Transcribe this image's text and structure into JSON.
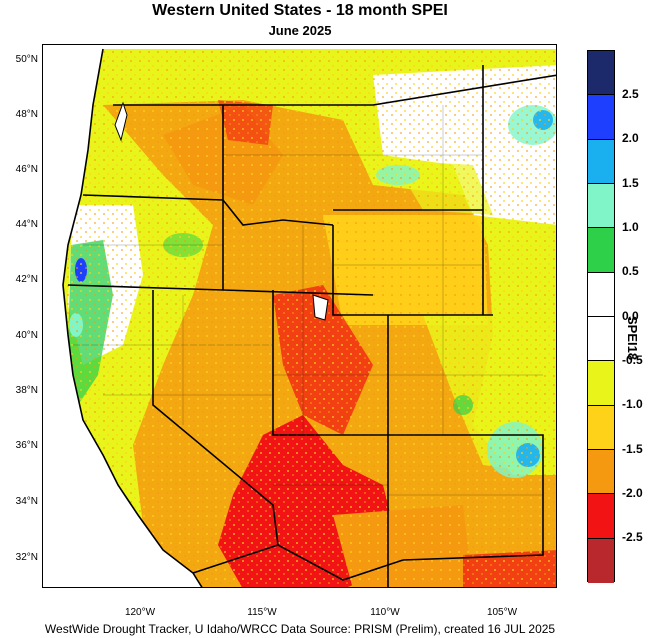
{
  "title": "Western United States - 18 month SPEI",
  "subtitle": "June 2025",
  "footer": "WestWide Drought Tracker, U Idaho/WRCC Data Source: PRISM (Prelim), created 16 JUL 2025",
  "lat_labels": [
    "50°N",
    "48°N",
    "46°N",
    "44°N",
    "42°N",
    "40°N",
    "38°N",
    "36°N",
    "34°N",
    "32°N"
  ],
  "lon_labels": [
    "120°W",
    "115°W",
    "110°W",
    "105°W"
  ],
  "colorbar": {
    "title": "SPEI18",
    "tick_labels": [
      "2.5",
      "2.0",
      "1.5",
      "1.0",
      "0.5",
      "0.0",
      "-0.5",
      "-1.0",
      "-1.5",
      "-2.0",
      "-2.5"
    ],
    "colors": [
      "#1c2a6b",
      "#1f3fff",
      "#1ab0f0",
      "#80f5c8",
      "#2ed04a",
      "#ffffff",
      "#ffffff",
      "#e9f51a",
      "#ffd21a",
      "#f59a10",
      "#f21414",
      "#b8282c"
    ]
  }
}
